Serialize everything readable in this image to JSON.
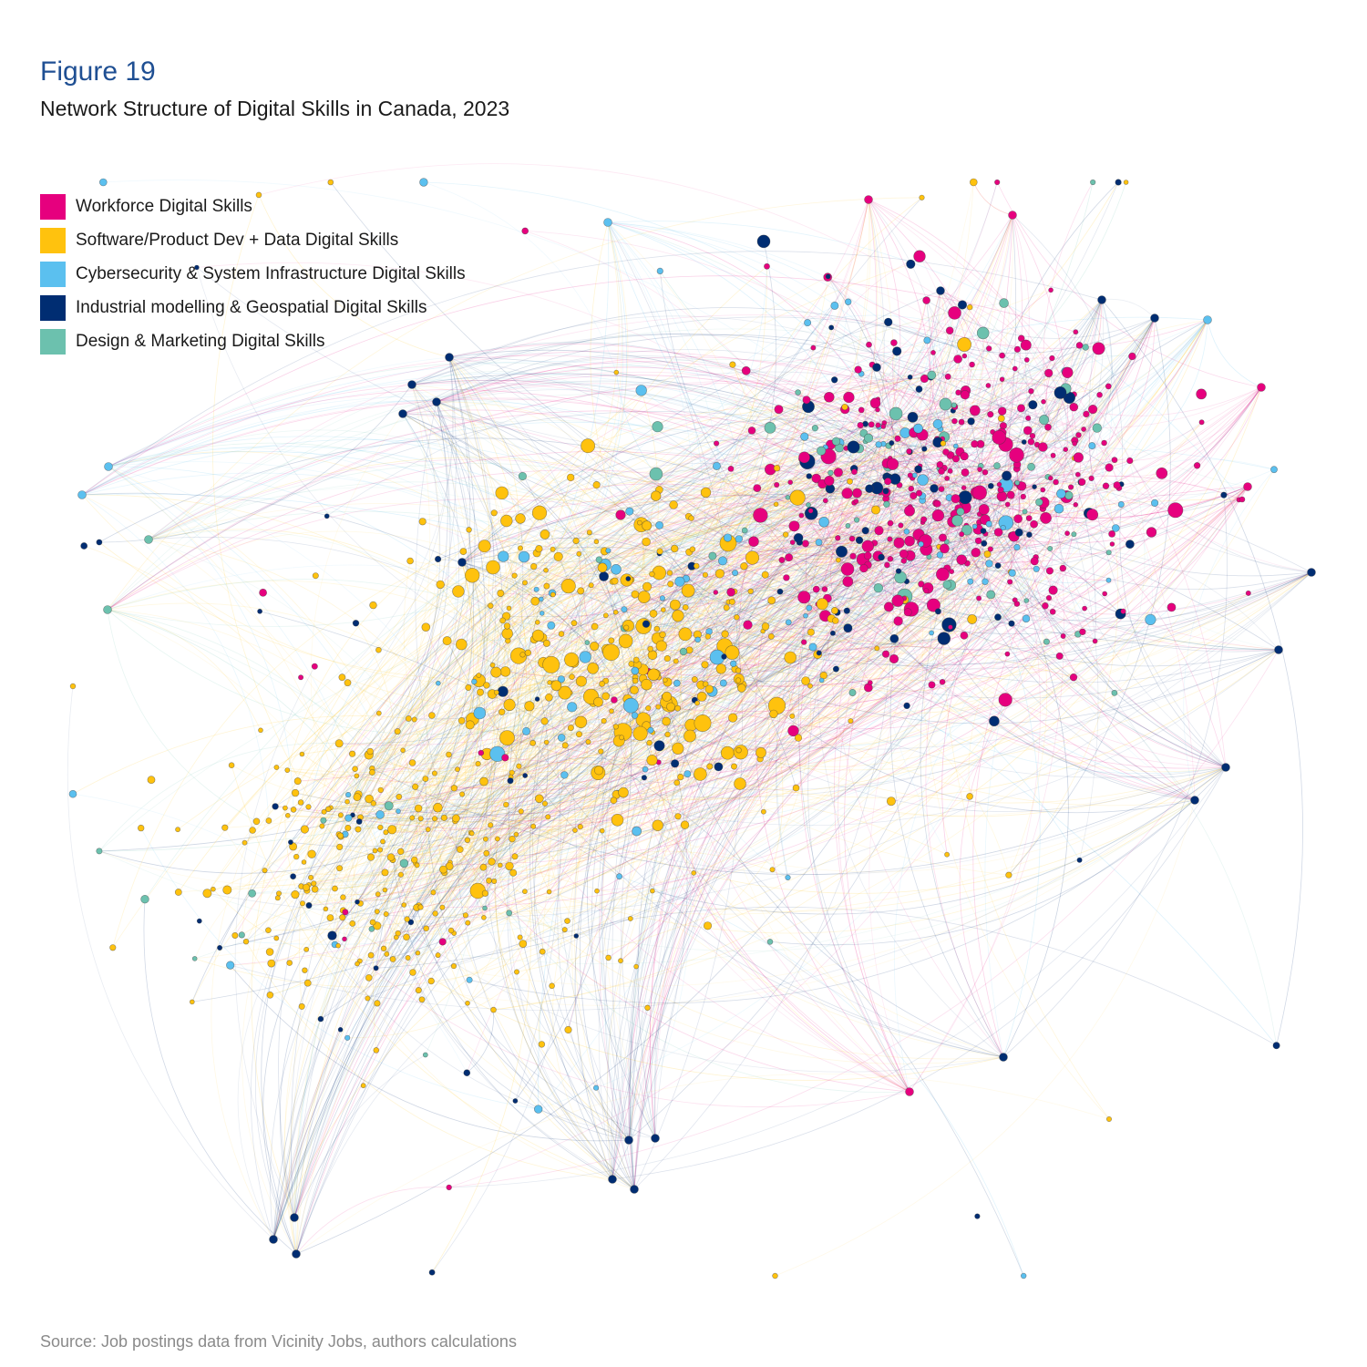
{
  "figure": {
    "label": "Figure 19",
    "title": "Network Structure of Digital Skills in Canada, 2023",
    "source": "Source: Job postings data from Vicinity Jobs, authors calculations"
  },
  "legend": [
    {
      "label": "Workforce Digital Skills",
      "color": "#e6007e"
    },
    {
      "label": "Software/Product Dev + Data Digital Skills",
      "color": "#ffc20e"
    },
    {
      "label": "Cybersecurity & System Infrastructure Digital Skills",
      "color": "#5bc0ef"
    },
    {
      "label": "Industrial modelling & Geospatial Digital Skills",
      "color": "#002d72"
    },
    {
      "label": "Design & Marketing Digital Skills",
      "color": "#6cc1ae"
    }
  ],
  "chart_data": {
    "type": "network",
    "categories": [
      "Workforce Digital Skills",
      "Software/Product Dev + Data Digital Skills",
      "Cybersecurity & System Infrastructure Digital Skills",
      "Industrial modelling & Geospatial Digital Skills",
      "Design & Marketing Digital Skills"
    ],
    "colors": [
      "#e6007e",
      "#ffc20e",
      "#5bc0ef",
      "#002d72",
      "#6cc1ae"
    ]
  }
}
